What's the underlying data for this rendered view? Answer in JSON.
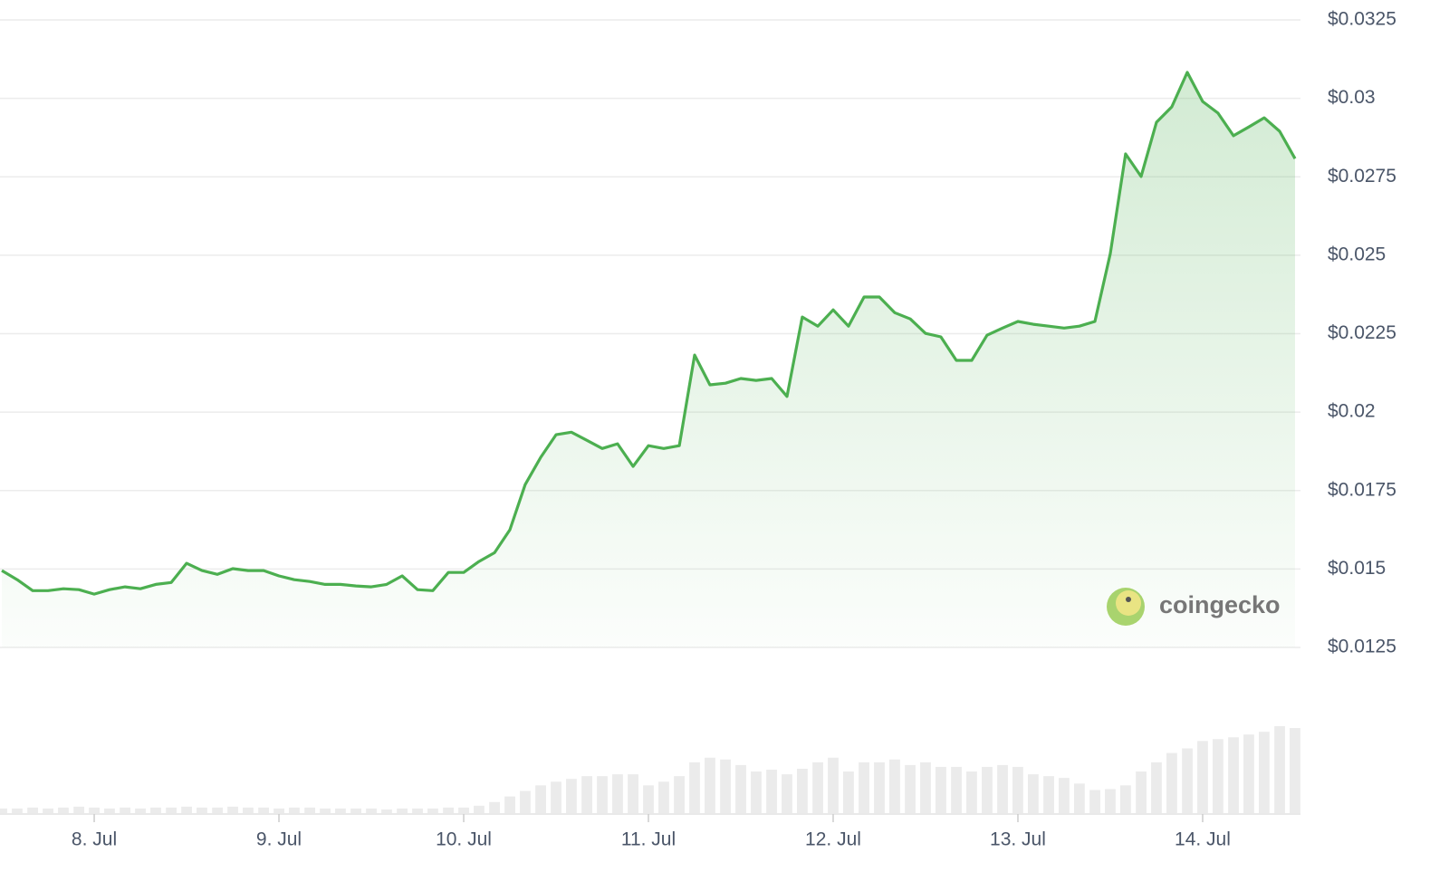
{
  "chart_data": {
    "type": "line",
    "x": [
      7.5,
      7.583,
      7.667,
      7.75,
      7.833,
      7.917,
      8,
      8.083,
      8.167,
      8.25,
      8.333,
      8.417,
      8.5,
      8.583,
      8.667,
      8.75,
      8.833,
      8.917,
      9,
      9.083,
      9.167,
      9.25,
      9.333,
      9.417,
      9.5,
      9.583,
      9.667,
      9.75,
      9.833,
      9.917,
      10,
      10.083,
      10.167,
      10.25,
      10.333,
      10.417,
      10.5,
      10.583,
      10.667,
      10.75,
      10.833,
      10.917,
      11,
      11.083,
      11.167,
      11.25,
      11.333,
      11.417,
      11.5,
      11.583,
      11.667,
      11.75,
      11.833,
      11.917,
      12,
      12.083,
      12.167,
      12.25,
      12.333,
      12.417,
      12.5,
      12.583,
      12.667,
      12.75,
      12.833,
      12.917,
      13,
      13.083,
      13.167,
      13.25,
      13.333,
      13.417,
      13.5,
      13.583,
      13.667,
      13.75,
      13.833,
      13.917,
      14,
      14.083,
      14.167,
      14.25,
      14.333,
      14.417,
      14.5
    ],
    "values": [
      0.01495,
      0.01466,
      0.01431,
      0.01431,
      0.01437,
      0.01434,
      0.0142,
      0.01434,
      0.01443,
      0.01437,
      0.01451,
      0.01457,
      0.01518,
      0.01495,
      0.01483,
      0.01501,
      0.01495,
      0.01495,
      0.01478,
      0.01466,
      0.0146,
      0.01451,
      0.01451,
      0.01446,
      0.01443,
      0.01451,
      0.01478,
      0.01434,
      0.01431,
      0.01489,
      0.01489,
      0.01524,
      0.01552,
      0.01625,
      0.01769,
      0.01856,
      0.01928,
      0.01936,
      0.0191,
      0.01884,
      0.01899,
      0.01827,
      0.01893,
      0.01884,
      0.01893,
      0.02182,
      0.02087,
      0.02092,
      0.02107,
      0.02101,
      0.02107,
      0.0205,
      0.02303,
      0.02274,
      0.02326,
      0.02274,
      0.02367,
      0.02367,
      0.02317,
      0.02297,
      0.02251,
      0.0224,
      0.02165,
      0.02165,
      0.02245,
      0.02268,
      0.02289,
      0.0228,
      0.02274,
      0.02268,
      0.02274,
      0.02289,
      0.02505,
      0.02823,
      0.02751,
      0.02924,
      0.02973,
      0.03083,
      0.0299,
      0.02953,
      0.02881,
      0.02909,
      0.02938,
      0.02895,
      0.02808
    ],
    "color": "#4caf50",
    "volume": {
      "color": "#ebebeb",
      "values": [
        5,
        5,
        6,
        5,
        6,
        7,
        6,
        5,
        6,
        5,
        6,
        6,
        7,
        6,
        6,
        7,
        6,
        6,
        5,
        6,
        6,
        5,
        5,
        5,
        5,
        4,
        5,
        5,
        5,
        6,
        6,
        8,
        12,
        18,
        24,
        30,
        34,
        37,
        40,
        40,
        42,
        42,
        30,
        34,
        40,
        55,
        60,
        58,
        52,
        45,
        47,
        42,
        48,
        55,
        60,
        45,
        55,
        55,
        58,
        52,
        55,
        50,
        50,
        45,
        50,
        52,
        50,
        42,
        40,
        38,
        32,
        25,
        26,
        30,
        45,
        55,
        65,
        70,
        78,
        80,
        82,
        85,
        88,
        94,
        92
      ]
    },
    "xlim": [
      7.49,
      14.51
    ],
    "xticks": [
      {
        "value": 8,
        "label": "8. Jul"
      },
      {
        "value": 9,
        "label": "9. Jul"
      },
      {
        "value": 10,
        "label": "10. Jul"
      },
      {
        "value": 11,
        "label": "11. Jul"
      },
      {
        "value": 12,
        "label": "12. Jul"
      },
      {
        "value": 13,
        "label": "13. Jul"
      },
      {
        "value": 14,
        "label": "14. Jul"
      }
    ],
    "ylim": [
      0.0125,
      0.0325
    ],
    "yticks": [
      {
        "value": 0.0125,
        "label": "$0.0125"
      },
      {
        "value": 0.015,
        "label": "$0.015"
      },
      {
        "value": 0.0175,
        "label": "$0.0175"
      },
      {
        "value": 0.02,
        "label": "$0.02"
      },
      {
        "value": 0.0225,
        "label": "$0.0225"
      },
      {
        "value": 0.025,
        "label": "$0.025"
      },
      {
        "value": 0.0275,
        "label": "$0.0275"
      },
      {
        "value": 0.03,
        "label": "$0.03"
      },
      {
        "value": 0.0325,
        "label": "$0.0325"
      }
    ],
    "grid": true,
    "watermark": "coingecko"
  }
}
